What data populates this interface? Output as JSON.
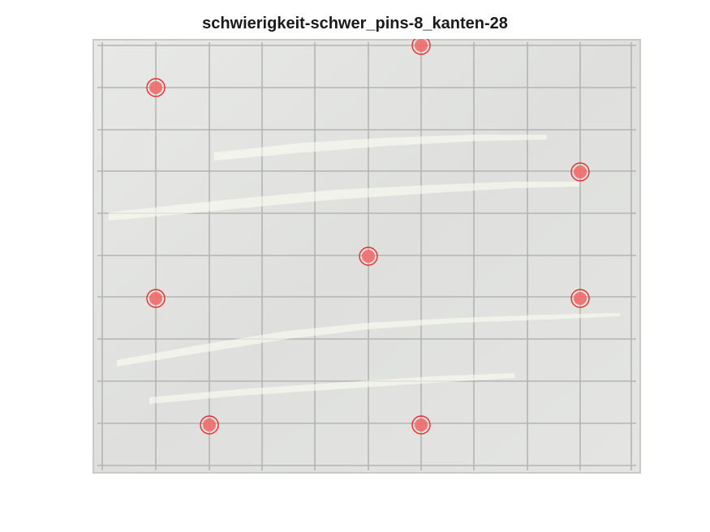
{
  "figure": {
    "title": "schwierigkeit-schwer_pins-8_kanten-28"
  },
  "colors": {
    "board": "#e1e2df",
    "grid_line": "#b4b4b2",
    "glare": "#fbfdf2",
    "pin_marker": "#ee2a2a",
    "pin_fill": "#f06a6a"
  },
  "pins": [
    {
      "name": "pin-1"
    },
    {
      "name": "pin-2"
    },
    {
      "name": "pin-3"
    },
    {
      "name": "pin-4"
    },
    {
      "name": "pin-5"
    },
    {
      "name": "pin-6"
    },
    {
      "name": "pin-7"
    },
    {
      "name": "pin-8"
    }
  ]
}
